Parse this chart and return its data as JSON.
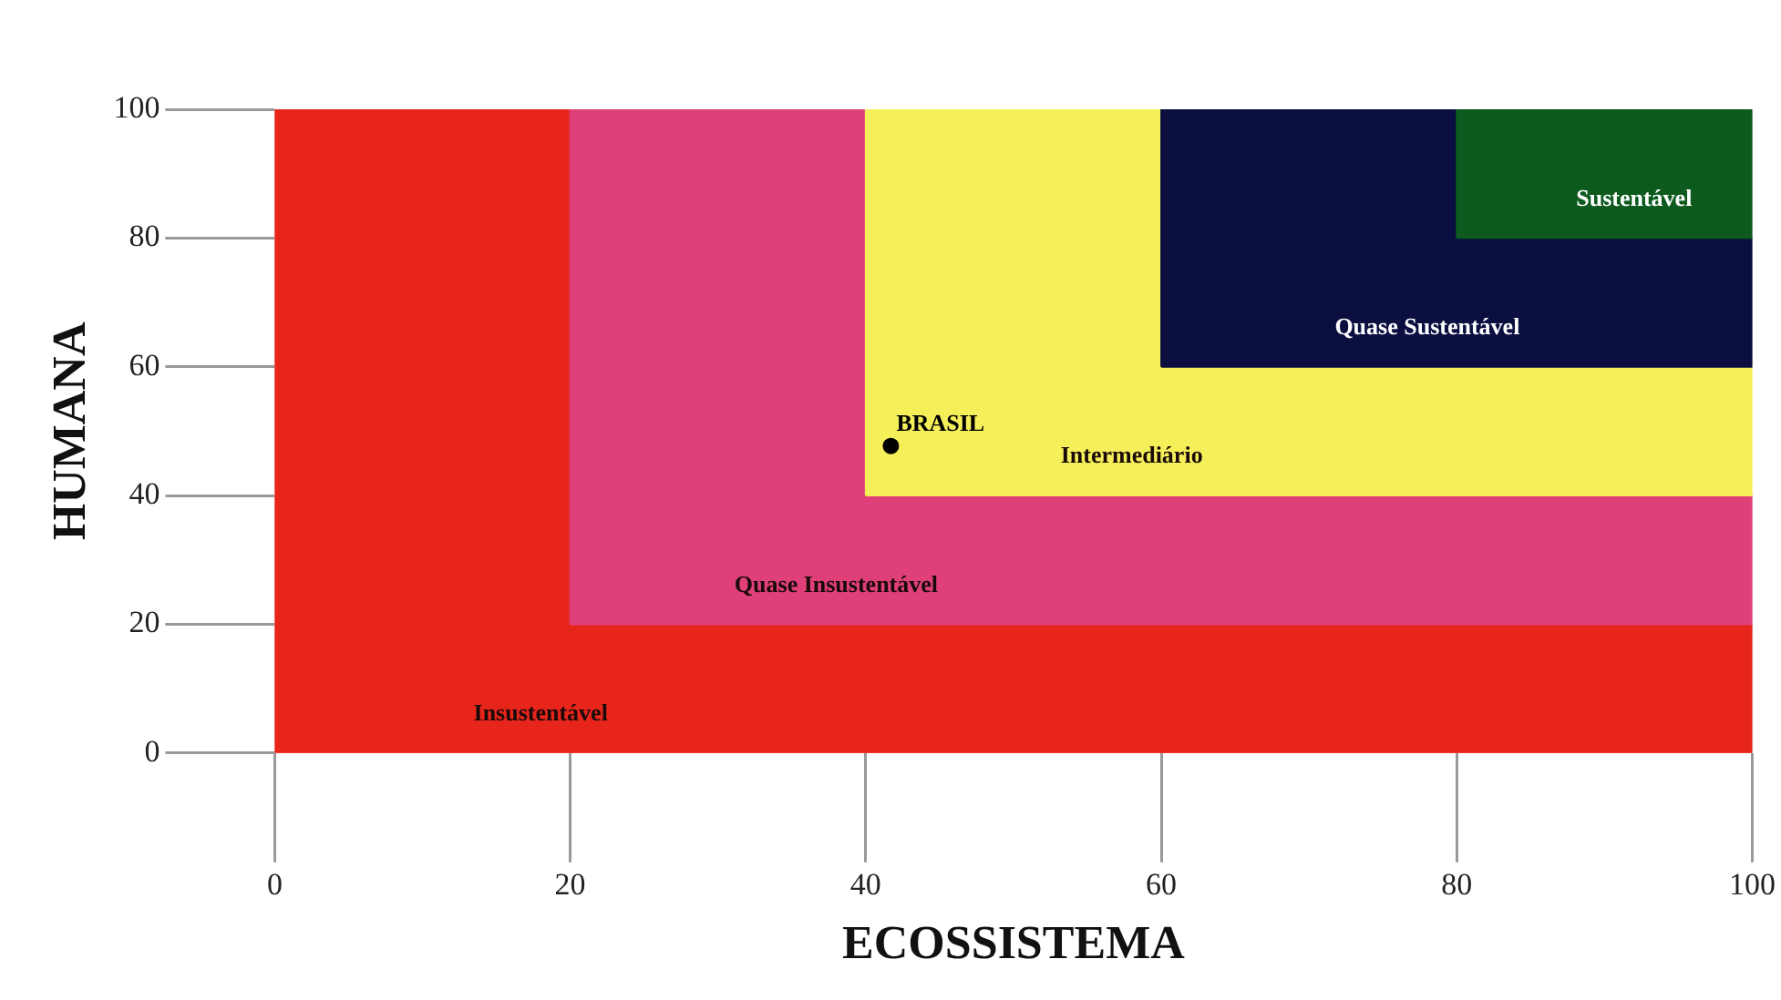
{
  "chart_data": {
    "type": "scatter",
    "xlabel": "ECOSSISTEMA",
    "ylabel": "HUMANA",
    "xlim": [
      0,
      100
    ],
    "xticks": [
      0,
      20,
      40,
      60,
      80,
      100
    ],
    "ylim": [
      0,
      100
    ],
    "yticks": [
      0,
      20,
      40,
      60,
      80,
      100
    ],
    "legend": false,
    "series": [
      {
        "type": "area",
        "name": "Insustentável",
        "x": [
          0,
          100,
          100,
          20,
          20,
          0,
          0
        ],
        "values": [
          0,
          0,
          20,
          20,
          100,
          100,
          0
        ],
        "color": "#e8251a"
      },
      {
        "type": "area",
        "name": "Quase Insustentável",
        "x": [
          20,
          100,
          100,
          40,
          40,
          20,
          20
        ],
        "values": [
          20,
          20,
          40,
          40,
          100,
          100,
          20
        ],
        "color": "#e0407a"
      },
      {
        "type": "area",
        "name": "Intermediário",
        "x": [
          40,
          100,
          100,
          60,
          60,
          40,
          40
        ],
        "values": [
          40,
          40,
          60,
          60,
          100,
          100,
          40
        ],
        "color": "#f5ef5a"
      },
      {
        "type": "area",
        "name": "Quase Sustentável",
        "x": [
          60,
          100,
          100,
          80,
          80,
          60,
          60
        ],
        "values": [
          60,
          60,
          80,
          80,
          100,
          100,
          60
        ],
        "color": "#0a0f40"
      },
      {
        "type": "area",
        "name": "Sustentável",
        "x": [
          80,
          100,
          100,
          80,
          80
        ],
        "values": [
          80,
          80,
          100,
          100,
          80
        ],
        "color": "#0c5a1e"
      },
      {
        "name": "BRASIL",
        "x": [
          41.7
        ],
        "values": [
          47.7
        ],
        "color": "#000000",
        "marker": "circle"
      }
    ]
  }
}
